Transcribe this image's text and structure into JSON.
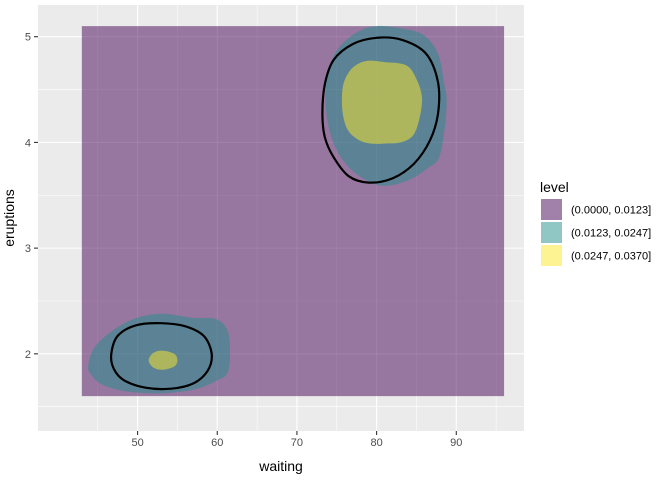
{
  "chart_data": {
    "type": "contour",
    "title": "",
    "xlabel": "waiting",
    "ylabel": "eruptions",
    "xlim": [
      37.5,
      98.5
    ],
    "ylim": [
      1.27,
      5.3
    ],
    "x_ticks": [
      50,
      60,
      70,
      80,
      90
    ],
    "x_tick_labels": [
      "50",
      "60",
      "70",
      "80",
      "90"
    ],
    "x_minor": [
      45,
      55,
      65,
      75,
      85,
      95
    ],
    "y_ticks": [
      2,
      3,
      4,
      5
    ],
    "y_tick_labels": [
      "2",
      "3",
      "4",
      "5"
    ],
    "y_minor": [
      1.5,
      2.5,
      3.5,
      4.5
    ],
    "grid": true,
    "legend": {
      "title": "level",
      "position": "right",
      "entries": [
        {
          "label": "(0.0000, 0.0123]",
          "color": "#440154"
        },
        {
          "label": "(0.0123, 0.0247]",
          "color": "#21908C"
        },
        {
          "label": "(0.0247, 0.0370]",
          "color": "#FDE725"
        }
      ]
    },
    "fill_alpha": 0.5,
    "background_region": {
      "level": "(0.0000, 0.0123]",
      "x": [
        43,
        96
      ],
      "y": [
        1.6,
        5.1
      ]
    },
    "filled_regions": [
      {
        "level": "(0.0123, 0.0247]",
        "points": [
          [
            75,
            4.87
          ],
          [
            77.5,
            5.04
          ],
          [
            80,
            5.1
          ],
          [
            83,
            5.08
          ],
          [
            85.8,
            5.02
          ],
          [
            87.7,
            4.84
          ],
          [
            88.5,
            4.55
          ],
          [
            88.8,
            4.4
          ],
          [
            88.5,
            4.1
          ],
          [
            87.8,
            3.85
          ],
          [
            86.5,
            3.76
          ],
          [
            84.5,
            3.66
          ],
          [
            82.2,
            3.6
          ],
          [
            80,
            3.6
          ],
          [
            77.5,
            3.7
          ],
          [
            75.5,
            3.86
          ],
          [
            74.2,
            4.08
          ],
          [
            73.6,
            4.36
          ],
          [
            73.8,
            4.63
          ]
        ]
      },
      {
        "level": "(0.0123, 0.0247]",
        "points": [
          [
            43.8,
            1.88
          ],
          [
            44.5,
            2.05
          ],
          [
            46.5,
            2.2
          ],
          [
            49.5,
            2.33
          ],
          [
            53,
            2.38
          ],
          [
            57,
            2.34
          ],
          [
            59.8,
            2.33
          ],
          [
            61.3,
            2.22
          ],
          [
            61.6,
            2.0
          ],
          [
            61.3,
            1.82
          ],
          [
            60,
            1.75
          ],
          [
            57.5,
            1.67
          ],
          [
            54,
            1.63
          ],
          [
            50.5,
            1.63
          ],
          [
            47.5,
            1.66
          ],
          [
            45.3,
            1.72
          ],
          [
            44.2,
            1.8
          ]
        ]
      },
      {
        "level": "(0.0247, 0.0370]",
        "points": [
          [
            75.8,
            4.54
          ],
          [
            76.9,
            4.7
          ],
          [
            78.7,
            4.77
          ],
          [
            81,
            4.76
          ],
          [
            83.7,
            4.73
          ],
          [
            85,
            4.6
          ],
          [
            85.7,
            4.42
          ],
          [
            85.3,
            4.2
          ],
          [
            84.5,
            4.06
          ],
          [
            83,
            4.0
          ],
          [
            81.2,
            3.99
          ],
          [
            79.2,
            3.99
          ],
          [
            77.6,
            4.03
          ],
          [
            76.3,
            4.13
          ],
          [
            75.7,
            4.31
          ]
        ]
      },
      {
        "level": "(0.0247, 0.0370]",
        "points": [
          [
            51.4,
            1.94
          ],
          [
            52,
            2.01
          ],
          [
            53.2,
            2.03
          ],
          [
            54.6,
            2.0
          ],
          [
            55,
            1.94
          ],
          [
            54.6,
            1.88
          ],
          [
            53.2,
            1.85
          ],
          [
            52,
            1.87
          ]
        ]
      }
    ],
    "contour_lines": [
      {
        "points": [
          [
            73.2,
            4.27
          ],
          [
            73.5,
            4.55
          ],
          [
            74.6,
            4.78
          ],
          [
            77,
            4.93
          ],
          [
            80,
            4.99
          ],
          [
            83.2,
            4.97
          ],
          [
            86.2,
            4.84
          ],
          [
            87.7,
            4.57
          ],
          [
            87.7,
            4.27
          ],
          [
            86.7,
            4.02
          ],
          [
            84.7,
            3.8
          ],
          [
            82,
            3.66
          ],
          [
            79,
            3.62
          ],
          [
            76.5,
            3.68
          ],
          [
            74.6,
            3.86
          ],
          [
            73.5,
            4.05
          ]
        ]
      },
      {
        "points": [
          [
            46.7,
            2.0
          ],
          [
            47.5,
            2.17
          ],
          [
            49.8,
            2.27
          ],
          [
            53,
            2.29
          ],
          [
            56,
            2.26
          ],
          [
            58.3,
            2.17
          ],
          [
            59.3,
            2.0
          ],
          [
            58.8,
            1.84
          ],
          [
            57,
            1.72
          ],
          [
            54.2,
            1.67
          ],
          [
            51,
            1.68
          ],
          [
            48.3,
            1.75
          ],
          [
            47,
            1.86
          ]
        ]
      }
    ]
  }
}
